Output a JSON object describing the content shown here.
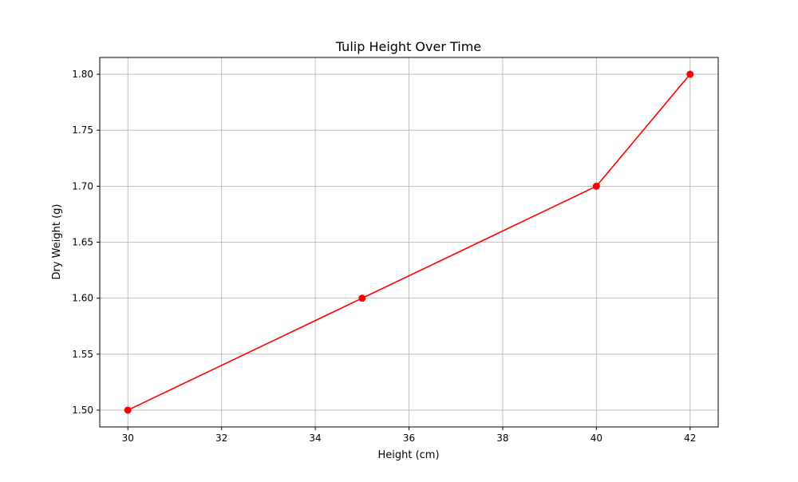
{
  "chart_data": {
    "type": "line",
    "title": "Tulip Height Over Time",
    "xlabel": "Height (cm)",
    "ylabel": "Dry Weight (g)",
    "xlim": [
      29.4,
      42.6
    ],
    "ylim": [
      1.485,
      1.815
    ],
    "x_ticks": [
      30,
      32,
      34,
      36,
      38,
      40,
      42
    ],
    "y_ticks": [
      1.5,
      1.55,
      1.6,
      1.65,
      1.7,
      1.75,
      1.8
    ],
    "y_tick_decimals": 2,
    "grid": true,
    "series": [
      {
        "x": [
          30,
          35,
          40,
          42
        ],
        "y": [
          1.5,
          1.6,
          1.7,
          1.8
        ],
        "color": "#ff0000",
        "marker": "circle"
      }
    ]
  }
}
